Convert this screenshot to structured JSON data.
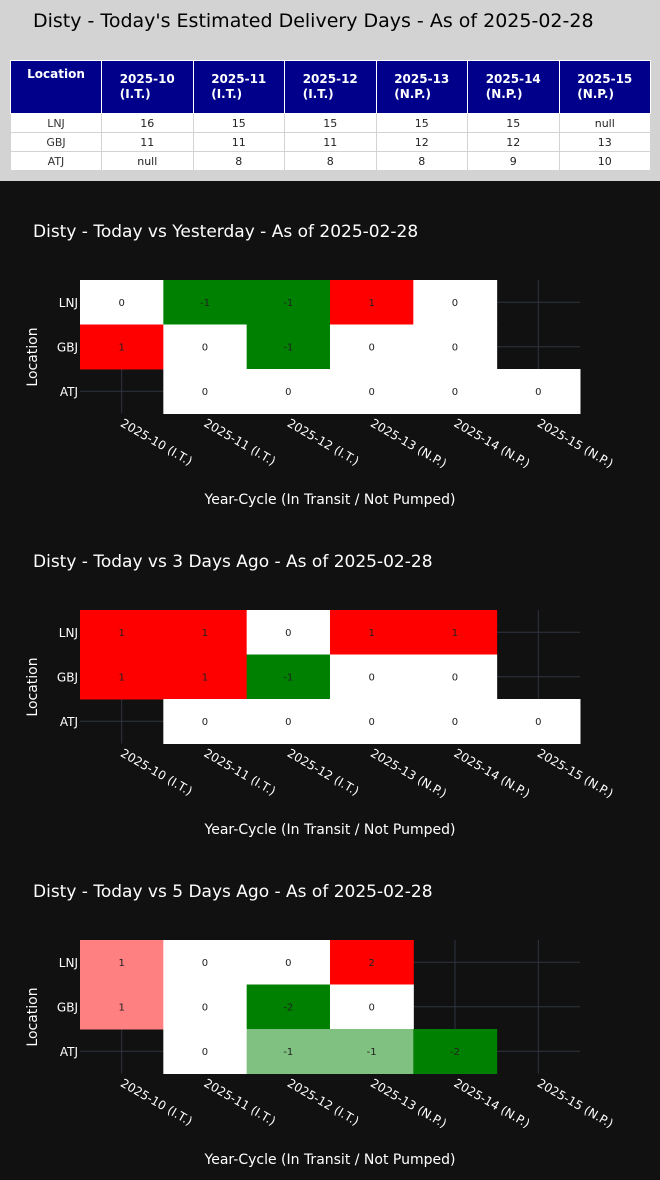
{
  "table": {
    "title": "Disty - Today's Estimated Delivery Days - As of 2025-02-28",
    "location_header": "Location",
    "columns": [
      {
        "cycle": "2025-10",
        "status": "(I.T.)"
      },
      {
        "cycle": "2025-11",
        "status": "(I.T.)"
      },
      {
        "cycle": "2025-12",
        "status": "(I.T.)"
      },
      {
        "cycle": "2025-13",
        "status": "(N.P.)"
      },
      {
        "cycle": "2025-14",
        "status": "(N.P.)"
      },
      {
        "cycle": "2025-15",
        "status": "(N.P.)"
      }
    ],
    "rows": [
      {
        "location": "LNJ",
        "values": [
          "16",
          "15",
          "15",
          "15",
          "15",
          "null"
        ]
      },
      {
        "location": "GBJ",
        "values": [
          "11",
          "11",
          "11",
          "12",
          "12",
          "13"
        ]
      },
      {
        "location": "ATJ",
        "values": [
          "null",
          "8",
          "8",
          "8",
          "9",
          "10"
        ]
      }
    ]
  },
  "chart_data": [
    {
      "type": "heatmap",
      "title": "Disty - Today vs Yesterday - As of 2025-02-28",
      "xlabel": "Year-Cycle (In Transit / Not Pumped)",
      "ylabel": "Location",
      "x": [
        "2025-10 (I.T.)",
        "2025-11 (I.T.)",
        "2025-12 (I.T.)",
        "2025-13 (N.P.)",
        "2025-14 (N.P.)",
        "2025-15 (N.P.)"
      ],
      "y": [
        "LNJ",
        "GBJ",
        "ATJ"
      ],
      "z": [
        [
          0,
          -1,
          -1,
          1,
          0,
          null
        ],
        [
          1,
          0,
          -1,
          0,
          0,
          null
        ],
        [
          null,
          0,
          0,
          0,
          0,
          0
        ]
      ],
      "colorscale": {
        "-2": "#008000",
        "-1": "#008000",
        "0": "#ffffff",
        "1": "#ff0000",
        "2": "#ff0000"
      }
    },
    {
      "type": "heatmap",
      "title": "Disty - Today vs 3 Days Ago - As of 2025-02-28",
      "xlabel": "Year-Cycle (In Transit / Not Pumped)",
      "ylabel": "Location",
      "x": [
        "2025-10 (I.T.)",
        "2025-11 (I.T.)",
        "2025-12 (I.T.)",
        "2025-13 (N.P.)",
        "2025-14 (N.P.)",
        "2025-15 (N.P.)"
      ],
      "y": [
        "LNJ",
        "GBJ",
        "ATJ"
      ],
      "z": [
        [
          1,
          1,
          0,
          1,
          1,
          null
        ],
        [
          1,
          1,
          -1,
          0,
          0,
          null
        ],
        [
          null,
          0,
          0,
          0,
          0,
          0
        ]
      ],
      "colorscale": {
        "-2": "#008000",
        "-1": "#008000",
        "0": "#ffffff",
        "1": "#ff0000",
        "2": "#ff0000"
      }
    },
    {
      "type": "heatmap",
      "title": "Disty - Today vs 5 Days Ago - As of 2025-02-28",
      "xlabel": "Year-Cycle (In Transit / Not Pumped)",
      "ylabel": "Location",
      "x": [
        "2025-10 (I.T.)",
        "2025-11 (I.T.)",
        "2025-12 (I.T.)",
        "2025-13 (N.P.)",
        "2025-14 (N.P.)",
        "2025-15 (N.P.)"
      ],
      "y": [
        "LNJ",
        "GBJ",
        "ATJ"
      ],
      "z": [
        [
          1,
          0,
          0,
          2,
          null,
          null
        ],
        [
          1,
          0,
          -2,
          0,
          null,
          null
        ],
        [
          null,
          0,
          -1,
          -1,
          -2,
          null
        ]
      ],
      "colorscale": {
        "-2": "#008000",
        "-1": "#80c080",
        "0": "#ffffff",
        "1": "#ff8080",
        "2": "#ff0000"
      }
    }
  ]
}
